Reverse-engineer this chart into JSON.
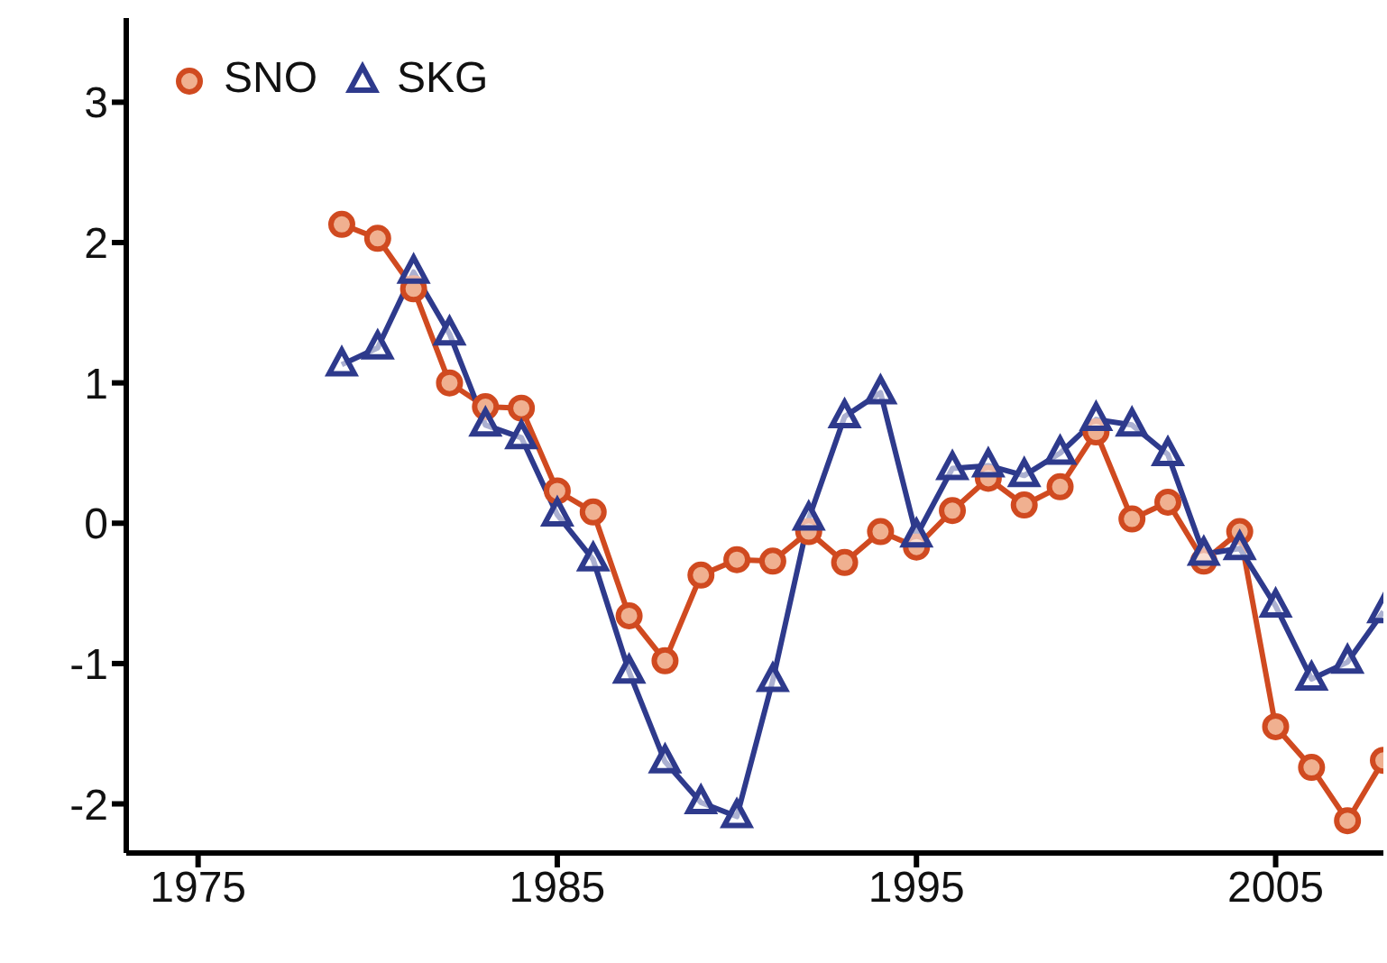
{
  "chart_data": {
    "type": "line",
    "x": [
      1979,
      1980,
      1981,
      1982,
      1983,
      1984,
      1985,
      1986,
      1987,
      1988,
      1989,
      1990,
      1991,
      1992,
      1993,
      1994,
      1995,
      1996,
      1997,
      1998,
      1999,
      2000,
      2001,
      2002,
      2003,
      2004,
      2005,
      2006,
      2007,
      2008
    ],
    "series": [
      {
        "name": "SNO",
        "color": "#d04a20",
        "marker": "circle",
        "values": [
          2.13,
          2.03,
          1.67,
          1.0,
          0.83,
          0.82,
          0.23,
          0.08,
          -0.66,
          -0.98,
          -0.37,
          -0.26,
          -0.27,
          -0.06,
          -0.28,
          -0.06,
          -0.17,
          0.09,
          0.32,
          0.13,
          0.26,
          0.65,
          0.03,
          0.15,
          -0.27,
          -0.06,
          -1.45,
          -1.74,
          -2.12,
          -1.69
        ]
      },
      {
        "name": "SKG",
        "color": "#2e3a8c",
        "marker": "triangle",
        "values": [
          1.13,
          1.25,
          1.79,
          1.35,
          0.7,
          0.61,
          0.06,
          -0.26,
          -1.06,
          -1.7,
          -1.99,
          -2.09,
          -1.12,
          0.03,
          0.76,
          0.93,
          -0.09,
          0.39,
          0.41,
          0.34,
          0.5,
          0.74,
          0.7,
          0.49,
          -0.22,
          -0.18,
          -0.59,
          -1.11,
          -0.99,
          -0.63
        ]
      }
    ],
    "xlim": [
      1973,
      2008
    ],
    "xticks": [
      1975,
      1985,
      1995,
      2005
    ],
    "ylim": [
      -2.35,
      3.6
    ],
    "yticks": [
      -2,
      -1,
      0,
      1,
      2,
      3
    ],
    "grid": false,
    "legend": "top left",
    "line_style": "solid"
  }
}
